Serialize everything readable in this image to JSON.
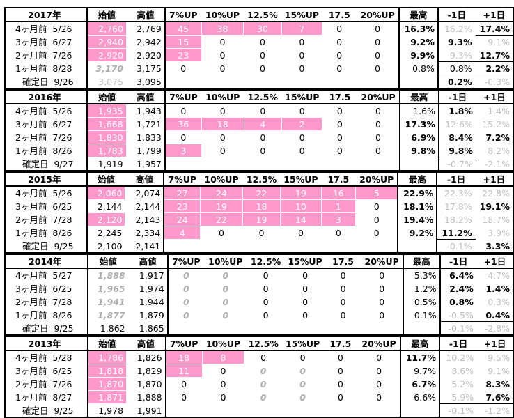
{
  "headers": [
    "始値",
    "高値",
    "7%UP",
    "10%UP",
    "12.5%",
    "15%UP",
    "17.5",
    "20%UP",
    "最高",
    "-1日",
    "+1日"
  ],
  "colors": {
    "pink": "#ff99cc",
    "gray": "#bfbfbf"
  },
  "blocks": [
    {
      "year": "2017年",
      "rows": [
        {
          "label": "4ヶ月前  5/26",
          "open": "2,760",
          "high": "2,769",
          "c7": "45",
          "c10": "38",
          "c12": "30",
          "c15": "7",
          "c17": "0",
          "c20": "0",
          "max": "16.3%",
          "m1": "16.2%",
          "p1": "17.4%"
        },
        {
          "label": "3ヶ月前  6/27",
          "open": "2,940",
          "high": "2,942",
          "c7": "15",
          "c10": "0",
          "c12": "0",
          "c15": "0",
          "c17": "0",
          "c20": "0",
          "max": "9.2%",
          "m1": "9.3%",
          "p1": "9.1%"
        },
        {
          "label": "2ヶ月前  7/26",
          "open": "2,920",
          "high": "2,920",
          "c7": "23",
          "c10": "0",
          "c12": "0",
          "c15": "0",
          "c17": "0",
          "c20": "0",
          "max": "9.9%",
          "m1": "9.3%",
          "p1": "12.7%"
        },
        {
          "label": "1ヶ月前  8/28",
          "open": "3,170",
          "high": "3,175",
          "c7": "0",
          "c10": "0",
          "c12": "0",
          "c15": "0",
          "c17": "0",
          "c20": "0",
          "max": "0.8%",
          "m1": "0.8%",
          "p1": "2.2%"
        },
        {
          "label": "確定日  9/26",
          "open": "3,075",
          "high": "3,095",
          "c7": "",
          "c10": "",
          "c12": "",
          "c15": "",
          "c17": "",
          "c20": "",
          "max": "",
          "m1": "0.2%",
          "p1": "-0.3%"
        }
      ]
    },
    {
      "year": "2016年",
      "rows": [
        {
          "label": "4ヶ月前  5/26",
          "open": "1,935",
          "high": "1,943",
          "c7": "0",
          "c10": "0",
          "c12": "0",
          "c15": "0",
          "c17": "0",
          "c20": "0",
          "max": "1.6%",
          "m1": "1.8%",
          "p1": "1.4%"
        },
        {
          "label": "3ヶ月前  6/27",
          "open": "1,668",
          "high": "1,721",
          "c7": "36",
          "c10": "18",
          "c12": "4",
          "c15": "2",
          "c17": "0",
          "c20": "0",
          "max": "17.3%",
          "m1": "12.6%",
          "p1": "15.2%"
        },
        {
          "label": "2ヶ月前  7/26",
          "open": "1,830",
          "high": "1,833",
          "c7": "0",
          "c10": "0",
          "c12": "0",
          "c15": "0",
          "c17": "0",
          "c20": "0",
          "max": "6.9%",
          "m1": "8.4%",
          "p1": "7.2%"
        },
        {
          "label": "1ヶ月前  8/26",
          "open": "1,783",
          "high": "1,799",
          "c7": "3",
          "c10": "0",
          "c12": "0",
          "c15": "0",
          "c17": "0",
          "c20": "0",
          "max": "9.8%",
          "m1": "9.8%",
          "p1": "8.2%"
        },
        {
          "label": "確定日  9/27",
          "open": "1,919",
          "high": "1,957",
          "c7": "",
          "c10": "",
          "c12": "",
          "c15": "",
          "c17": "",
          "c20": "",
          "max": "",
          "m1": "-0.7%",
          "p1": "-2.1%"
        }
      ]
    },
    {
      "year": "2015年",
      "rows": [
        {
          "label": "4ヶ月前  5/26",
          "open": "2,060",
          "high": "2,074",
          "c7": "27",
          "c10": "24",
          "c12": "22",
          "c15": "19",
          "c17": "16",
          "c20": "5",
          "max": "22.9%",
          "m1": "22.3%",
          "p1": "22.8%"
        },
        {
          "label": "3ヶ月前  6/25",
          "open": "2,144",
          "high": "2,144",
          "c7": "23",
          "c10": "19",
          "c12": "18",
          "c15": "10",
          "c17": "1",
          "c20": "0",
          "max": "18.1%",
          "m1": "17.8%",
          "p1": "19.1%"
        },
        {
          "label": "2ヶ月前  7/28",
          "open": "2,120",
          "high": "2,143",
          "c7": "24",
          "c10": "22",
          "c12": "19",
          "c15": "14",
          "c17": "3",
          "c20": "0",
          "max": "19.4%",
          "m1": "18.2%",
          "p1": "18.7%"
        },
        {
          "label": "1ヶ月前  8/26",
          "open": "2,245",
          "high": "2,334",
          "c7": "4",
          "c10": "0",
          "c12": "0",
          "c15": "0",
          "c17": "0",
          "c20": "0",
          "max": "9.2%",
          "m1": "11.2%",
          "p1": "3.9%"
        },
        {
          "label": "確定日  9/25",
          "open": "2,100",
          "high": "2,141",
          "c7": "",
          "c10": "",
          "c12": "",
          "c15": "",
          "c17": "",
          "c20": "",
          "max": "",
          "m1": "-0.1%",
          "p1": "3.3%"
        }
      ]
    },
    {
      "year": "2014年",
      "rows": [
        {
          "label": "4ヶ月前  5/27",
          "open": "1,888",
          "high": "1,917",
          "c7": "0",
          "c10": "0",
          "c12": "0",
          "c15": "0",
          "c17": "0",
          "c20": "0",
          "max": "5.3%",
          "m1": "6.4%",
          "p1": "4.7%"
        },
        {
          "label": "3ヶ月前  6/25",
          "open": "1,965",
          "high": "1,974",
          "c7": "0",
          "c10": "0",
          "c12": "0",
          "c15": "0",
          "c17": "0",
          "c20": "0",
          "max": "1.2%",
          "m1": "2.4%",
          "p1": "1.4%"
        },
        {
          "label": "2ヶ月前  7/28",
          "open": "1,941",
          "high": "1,944",
          "c7": "0",
          "c10": "0",
          "c12": "0",
          "c15": "0",
          "c17": "0",
          "c20": "0",
          "max": "0.5%",
          "m1": "0.8%",
          "p1": "0.3%"
        },
        {
          "label": "1ヶ月前  8/26",
          "open": "1,877",
          "high": "1,879",
          "c7": "0",
          "c10": "0",
          "c12": "0",
          "c15": "0",
          "c17": "0",
          "c20": "0",
          "max": "0.1%",
          "m1": "-0.5%",
          "p1": "0.4%"
        },
        {
          "label": "確定日  9/25",
          "open": "1,862",
          "high": "1,865",
          "c7": "",
          "c10": "",
          "c12": "",
          "c15": "",
          "c17": "",
          "c20": "",
          "max": "",
          "m1": "-0.1%",
          "p1": "-2.8%"
        }
      ]
    },
    {
      "year": "2013年",
      "rows": [
        {
          "label": "4ヶ月前  5/28",
          "open": "1,786",
          "high": "1,826",
          "c7": "18",
          "c10": "8",
          "c12": "0",
          "c15": "0",
          "c17": "0",
          "c20": "0",
          "max": "11.7%",
          "m1": "10.2%",
          "p1": "9.5%"
        },
        {
          "label": "3ヶ月前  6/25",
          "open": "1,818",
          "high": "1,829",
          "c7": "11",
          "c10": "0",
          "c12": "0",
          "c15": "0",
          "c17": "0",
          "c20": "0",
          "max": "9.7%",
          "m1": "8.6%",
          "p1": "9.1%"
        },
        {
          "label": "2ヶ月前  7/26",
          "open": "1,870",
          "high": "1,870",
          "c7": "0",
          "c10": "0",
          "c12": "0",
          "c15": "0",
          "c17": "0",
          "c20": "0",
          "max": "6.7%",
          "m1": "5.2%",
          "p1": "8.3%"
        },
        {
          "label": "1ヶ月前  8/27",
          "open": "1,871",
          "high": "1,888",
          "c7": "0",
          "c10": "0",
          "c12": "0",
          "c15": "0",
          "c17": "0",
          "c20": "0",
          "max": "6.6%",
          "m1": "5.9%",
          "p1": "7.6%"
        },
        {
          "label": "確定日  9/25",
          "open": "1,978",
          "high": "1,991",
          "c7": "",
          "c10": "",
          "c12": "",
          "c15": "",
          "c17": "",
          "c20": "",
          "max": "",
          "m1": "-0.1%",
          "p1": "-1.2%"
        }
      ]
    }
  ]
}
